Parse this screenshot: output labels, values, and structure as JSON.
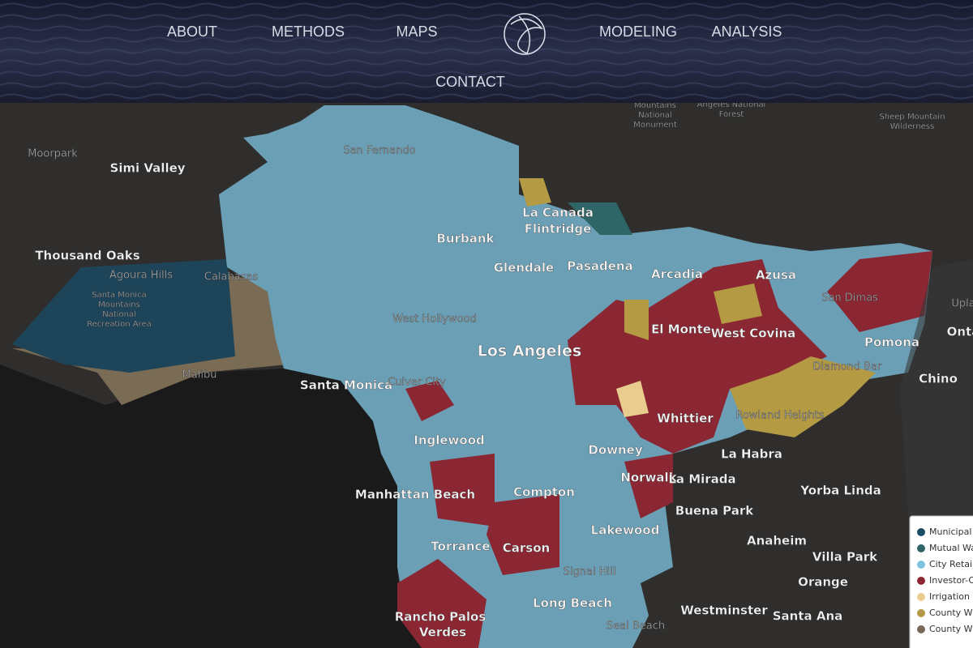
{
  "nav": {
    "items": [
      "ABOUT",
      "METHODS",
      "MAPS",
      "MODELING",
      "ANALYSIS"
    ],
    "contact": "CONTACT"
  },
  "map": {
    "labels": [
      "Moorpark",
      "Simi Valley",
      "Thousand Oaks",
      "Agoura Hills",
      "Calabasas",
      "Santa Monica",
      "Mountains",
      "National",
      "Recreation Area",
      "Malibu",
      "San Fernando",
      "La Canada",
      "Flintridge",
      "Burbank",
      "Glendale",
      "Pasadena",
      "Arcadia",
      "Azusa",
      "San Dimas",
      "Upla",
      "Onta",
      "Pomona",
      "West Hollywood",
      "Los Angeles",
      "El Monte",
      "West Covina",
      "Diamond Bar",
      "Chino",
      "Santa Monica",
      "Culver City",
      "Whittier",
      "Rowland Heights",
      "Inglewood",
      "Downey",
      "La Habra",
      "Manhattan Beach",
      "Compton",
      "Norwalk",
      "La Mirada",
      "Yorba Linda",
      "Buena Park",
      "Lakewood",
      "Anaheim",
      "Villa Park",
      "Torrance",
      "Carson",
      "Orange",
      "Signal Hill",
      "Long Beach",
      "Westminster",
      "Santa Ana",
      "Rancho Palos",
      "Verdes",
      "Seal Beach",
      "Mountains",
      "National",
      "Monument",
      "Angeles National",
      "Forest",
      "Sheep Mountain",
      "Wilderness"
    ]
  },
  "legend": {
    "items": [
      {
        "label": "Municipal",
        "color": "#1d4a66"
      },
      {
        "label": "Mutual Wa",
        "color": "#2e6668"
      },
      {
        "label": "City Retai",
        "color": "#7cc3dc"
      },
      {
        "label": "Investor-O",
        "color": "#8a2733"
      },
      {
        "label": "Irrigation D",
        "color": "#e9cd8f"
      },
      {
        "label": "County W",
        "color": "#b49a43"
      },
      {
        "label": "County W",
        "color": "#7a6a55"
      }
    ]
  }
}
